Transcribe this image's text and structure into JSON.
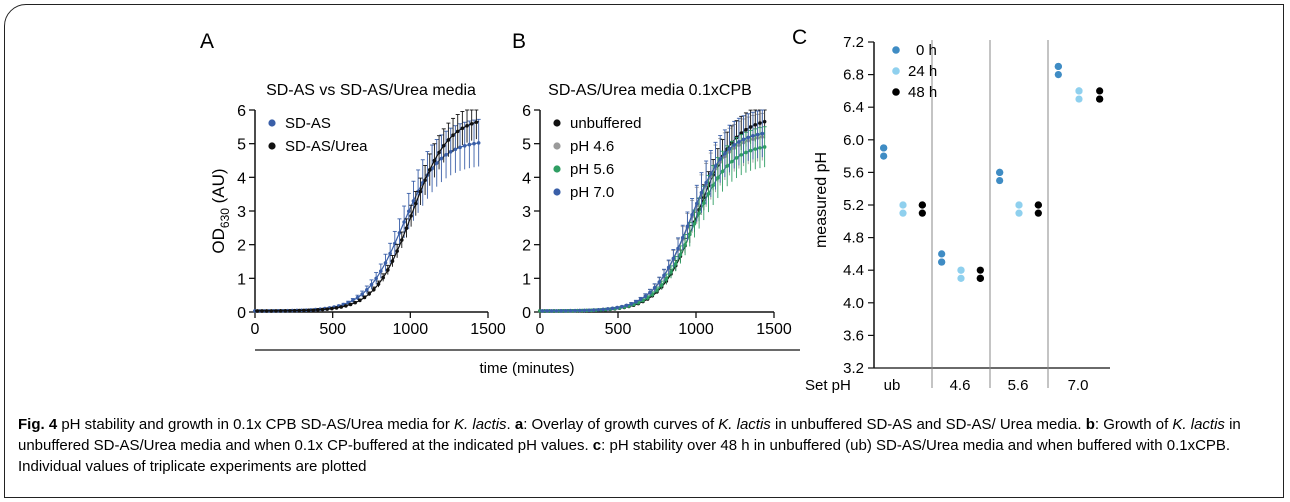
{
  "figure": {
    "panel_letters": [
      "A",
      "B",
      "C"
    ],
    "shared_xlabel": "time (minutes)"
  },
  "caption": {
    "fig_label": "Fig. 4",
    "part1": " pH stability and growth in 0.1x CPB SD-AS/Urea media for ",
    "species": "K. lactis",
    "part2": ". ",
    "a_label": "a",
    "a_text1": ": Overlay of growth curves of ",
    "a_text2": " in unbuffered SD-AS and SD-AS/ Urea media. ",
    "b_label": "b",
    "b_text1": ": Growth of ",
    "b_text2": " in unbuffered SD-AS/Urea media and when 0.1x CP-buffered at the indicated pH values. ",
    "c_label": "c",
    "c_text": ": pH stability over 48 h in unbuffered (ub) SD-AS/Urea media and when buffered with 0.1xCPB. Individual values of triplicate experiments are plotted"
  },
  "colors": {
    "blue": "#3a5fa8",
    "black": "#111111",
    "gray": "#9a9a9a",
    "green": "#2f9e63",
    "c0h": "#3f8cc4",
    "c24h": "#8fd0ee",
    "c48h": "#000000"
  },
  "chart_data": [
    {
      "type": "line",
      "panel": "A",
      "title": "SD-AS vs SD-AS/Urea media",
      "xlabel": "time (minutes)",
      "ylabel": "OD630 (AU)",
      "xlim": [
        0,
        1500
      ],
      "ylim": [
        0,
        6
      ],
      "xticks": [
        0,
        500,
        1000,
        1500
      ],
      "yticks": [
        0,
        1,
        2,
        3,
        4,
        5,
        6
      ],
      "legend": "top-left",
      "error_bars": true,
      "series": [
        {
          "name": "SD-AS",
          "color": "blue",
          "curve": {
            "plateau": 5.1,
            "midpoint": 950,
            "slope": 0.0085
          },
          "error": 0.7
        },
        {
          "name": "SD-AS/Urea",
          "color": "black",
          "curve": {
            "plateau": 5.8,
            "midpoint": 1010,
            "slope": 0.0085
          },
          "error": 0.5
        }
      ]
    },
    {
      "type": "line",
      "panel": "B",
      "title": "SD-AS/Urea media 0.1xCPB",
      "xlabel": "time (minutes)",
      "ylabel": "",
      "xlim": [
        0,
        1500
      ],
      "ylim": [
        0,
        6
      ],
      "xticks": [
        0,
        500,
        1000,
        1500
      ],
      "yticks": [
        0,
        1,
        2,
        3,
        4,
        5,
        6
      ],
      "legend": "top-left",
      "error_bars": true,
      "series": [
        {
          "name": "unbuffered",
          "color": "black",
          "curve": {
            "plateau": 5.8,
            "midpoint": 1010,
            "slope": 0.0085
          },
          "error": 0.5
        },
        {
          "name": "pH 4.6",
          "color": "gray",
          "curve": {
            "plateau": 5.3,
            "midpoint": 960,
            "slope": 0.0085
          },
          "error": 0.7
        },
        {
          "name": "pH 5.6",
          "color": "green",
          "curve": {
            "plateau": 5.0,
            "midpoint": 980,
            "slope": 0.0085
          },
          "error": 0.6
        },
        {
          "name": "pH 7.0",
          "color": "blue",
          "curve": {
            "plateau": 5.4,
            "midpoint": 960,
            "slope": 0.0085
          },
          "error": 0.7
        }
      ]
    },
    {
      "type": "scatter",
      "panel": "C",
      "title": "",
      "ylabel": "measured pH",
      "ylim": [
        3.2,
        7.2
      ],
      "yticks": [
        3.2,
        3.6,
        4.0,
        4.4,
        4.8,
        5.2,
        5.6,
        6.0,
        6.4,
        6.8,
        7.2
      ],
      "x_title": "Set pH",
      "categories": [
        "ub",
        "4.6",
        "5.6",
        "7.0"
      ],
      "legend": "top-left",
      "series": [
        {
          "name": "0 h",
          "color": "c0h",
          "values": [
            [
              5.9,
              5.8,
              5.9
            ],
            [
              4.6,
              4.5,
              4.5
            ],
            [
              5.6,
              5.5,
              5.6
            ],
            [
              6.9,
              6.8,
              6.9
            ]
          ]
        },
        {
          "name": "24 h",
          "color": "c24h",
          "values": [
            [
              5.2,
              5.1,
              5.2
            ],
            [
              4.4,
              4.3,
              4.4
            ],
            [
              5.2,
              5.1,
              5.2
            ],
            [
              6.6,
              6.5,
              6.6
            ]
          ]
        },
        {
          "name": "48 h",
          "color": "c48h",
          "values": [
            [
              5.2,
              5.1,
              5.2
            ],
            [
              4.4,
              4.3,
              4.3
            ],
            [
              5.2,
              5.1,
              5.2
            ],
            [
              6.6,
              6.5,
              6.5
            ]
          ]
        }
      ]
    }
  ]
}
